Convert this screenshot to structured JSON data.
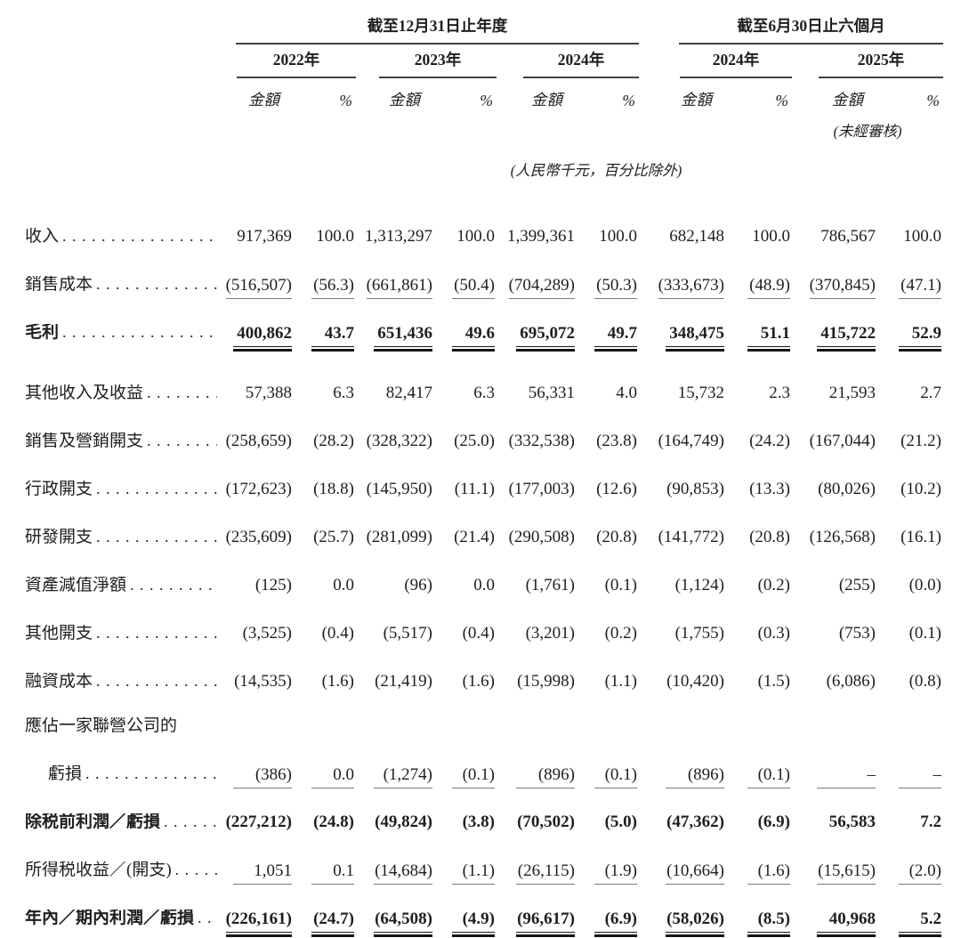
{
  "table": {
    "period_headers": [
      "截至12月31日止年度",
      "截至6月30日止六個月"
    ],
    "year_headers": [
      "2022年",
      "2023年",
      "2024年",
      "2024年",
      "2025年"
    ],
    "col_header_amount": "金額",
    "col_header_percent": "%",
    "unaudited_note": "(未經審核)",
    "unit_note": "(人民幣千元，百分比除外)",
    "rows": [
      {
        "label": "收入",
        "dots": true,
        "bold": false,
        "underline": "none",
        "indent": false,
        "values": [
          "917,369",
          "100.0",
          "1,313,297",
          "100.0",
          "1,399,361",
          "100.0",
          "682,148",
          "100.0",
          "786,567",
          "100.0"
        ]
      },
      {
        "label": "銷售成本",
        "dots": true,
        "bold": false,
        "underline": "single",
        "indent": false,
        "values": [
          "(516,507)",
          "(56.3)",
          "(661,861)",
          "(50.4)",
          "(704,289)",
          "(50.3)",
          "(333,673)",
          "(48.9)",
          "(370,845)",
          "(47.1)"
        ]
      },
      {
        "label": "毛利",
        "dots": true,
        "bold": true,
        "underline": "double",
        "indent": false,
        "gap_after": true,
        "values": [
          "400,862",
          "43.7",
          "651,436",
          "49.6",
          "695,072",
          "49.7",
          "348,475",
          "51.1",
          "415,722",
          "52.9"
        ]
      },
      {
        "label": "其他收入及收益",
        "dots": true,
        "bold": false,
        "underline": "none",
        "indent": false,
        "values": [
          "57,388",
          "6.3",
          "82,417",
          "6.3",
          "56,331",
          "4.0",
          "15,732",
          "2.3",
          "21,593",
          "2.7"
        ]
      },
      {
        "label": "銷售及營銷開支",
        "dots": true,
        "bold": false,
        "underline": "none",
        "indent": false,
        "values": [
          "(258,659)",
          "(28.2)",
          "(328,322)",
          "(25.0)",
          "(332,538)",
          "(23.8)",
          "(164,749)",
          "(24.2)",
          "(167,044)",
          "(21.2)"
        ]
      },
      {
        "label": "行政開支",
        "dots": true,
        "bold": false,
        "underline": "none",
        "indent": false,
        "values": [
          "(172,623)",
          "(18.8)",
          "(145,950)",
          "(11.1)",
          "(177,003)",
          "(12.6)",
          "(90,853)",
          "(13.3)",
          "(80,026)",
          "(10.2)"
        ]
      },
      {
        "label": "研發開支",
        "dots": true,
        "bold": false,
        "underline": "none",
        "indent": false,
        "values": [
          "(235,609)",
          "(25.7)",
          "(281,099)",
          "(21.4)",
          "(290,508)",
          "(20.8)",
          "(141,772)",
          "(20.8)",
          "(126,568)",
          "(16.1)"
        ]
      },
      {
        "label": "資產減值淨額",
        "dots": true,
        "bold": false,
        "underline": "none",
        "indent": false,
        "values": [
          "(125)",
          "0.0",
          "(96)",
          "0.0",
          "(1,761)",
          "(0.1)",
          "(1,124)",
          "(0.2)",
          "(255)",
          "(0.0)"
        ]
      },
      {
        "label": "其他開支",
        "dots": true,
        "bold": false,
        "underline": "none",
        "indent": false,
        "values": [
          "(3,525)",
          "(0.4)",
          "(5,517)",
          "(0.4)",
          "(3,201)",
          "(0.2)",
          "(1,755)",
          "(0.3)",
          "(753)",
          "(0.1)"
        ]
      },
      {
        "label": "融資成本",
        "dots": true,
        "bold": false,
        "underline": "none",
        "indent": false,
        "values": [
          "(14,535)",
          "(1.6)",
          "(21,419)",
          "(1.6)",
          "(15,998)",
          "(1.1)",
          "(10,420)",
          "(1.5)",
          "(6,086)",
          "(0.8)"
        ]
      },
      {
        "label": "應佔一家聯營公司的",
        "dots": false,
        "bold": false,
        "underline": "none",
        "indent": false,
        "values": []
      },
      {
        "label": "虧損",
        "dots": true,
        "bold": false,
        "underline": "single",
        "indent": true,
        "values": [
          "(386)",
          "0.0",
          "(1,274)",
          "(0.1)",
          "(896)",
          "(0.1)",
          "(896)",
          "(0.1)",
          "–",
          "–"
        ]
      },
      {
        "label": "除税前利潤／虧損",
        "dots": true,
        "bold": true,
        "underline": "none",
        "indent": false,
        "values": [
          "(227,212)",
          "(24.8)",
          "(49,824)",
          "(3.8)",
          "(70,502)",
          "(5.0)",
          "(47,362)",
          "(6.9)",
          "56,583",
          "7.2"
        ]
      },
      {
        "label": "所得税收益／(開支)",
        "dots": true,
        "bold": false,
        "underline": "single",
        "indent": false,
        "values": [
          "1,051",
          "0.1",
          "(14,684)",
          "(1.1)",
          "(26,115)",
          "(1.9)",
          "(10,664)",
          "(1.6)",
          "(15,615)",
          "(2.0)"
        ]
      },
      {
        "label": "年內／期內利潤／虧損",
        "dots": true,
        "bold": true,
        "underline": "double",
        "indent": false,
        "values": [
          "(226,161)",
          "(24.7)",
          "(64,508)",
          "(4.9)",
          "(96,617)",
          "(6.9)",
          "(58,026)",
          "(8.5)",
          "40,968",
          "5.2"
        ]
      }
    ]
  }
}
